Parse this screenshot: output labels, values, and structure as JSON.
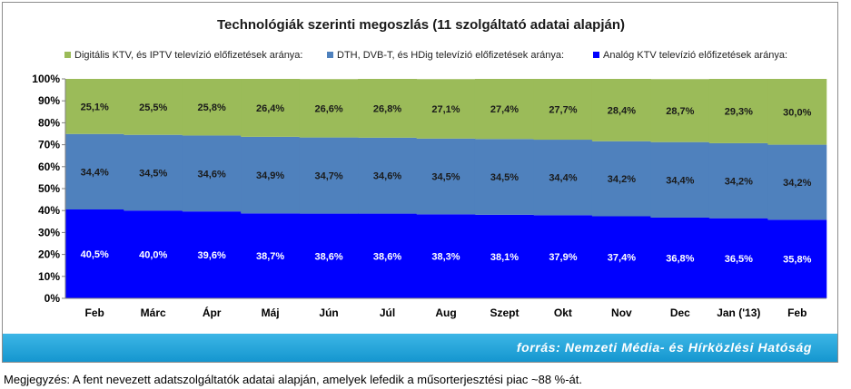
{
  "chart_data": {
    "type": "bar",
    "stacked": true,
    "title": "Technológiák szerinti megoszlás (11 szolgáltató adatai alapján)",
    "categories": [
      "Feb",
      "Márc",
      "Ápr",
      "Máj",
      "Jún",
      "Júl",
      "Aug",
      "Szept",
      "Okt",
      "Nov",
      "Dec",
      "Jan ('13)",
      "Feb"
    ],
    "series": [
      {
        "name": "Analóg KTV televízió előfizetések aránya:",
        "color": "#0000ff",
        "values": [
          40.5,
          40.0,
          39.6,
          38.7,
          38.6,
          38.6,
          38.3,
          38.1,
          37.9,
          37.4,
          36.8,
          36.5,
          35.8
        ],
        "labels": [
          "40,5%",
          "40,0%",
          "39,6%",
          "38,7%",
          "38,6%",
          "38,6%",
          "38,3%",
          "38,1%",
          "37,9%",
          "37,4%",
          "36,8%",
          "36,5%",
          "35,8%"
        ]
      },
      {
        "name": "DTH, DVB-T, és HDig televízió előfizetések aránya:",
        "color": "#4f81bd",
        "values": [
          34.4,
          34.5,
          34.6,
          34.9,
          34.7,
          34.6,
          34.5,
          34.5,
          34.4,
          34.2,
          34.4,
          34.2,
          34.2
        ],
        "labels": [
          "34,4%",
          "34,5%",
          "34,6%",
          "34,9%",
          "34,7%",
          "34,6%",
          "34,5%",
          "34,5%",
          "34,4%",
          "34,2%",
          "34,4%",
          "34,2%",
          "34,2%"
        ]
      },
      {
        "name": "Digitális KTV, és IPTV televízió előfizetések aránya:",
        "color": "#9bbb59",
        "values": [
          25.1,
          25.5,
          25.8,
          26.4,
          26.6,
          26.8,
          27.1,
          27.4,
          27.7,
          28.4,
          28.7,
          29.3,
          30.0
        ],
        "labels": [
          "25,1%",
          "25,5%",
          "25,8%",
          "26,4%",
          "26,6%",
          "26,8%",
          "27,1%",
          "27,4%",
          "27,7%",
          "28,4%",
          "28,7%",
          "29,3%",
          "30,0%"
        ]
      }
    ],
    "legend_order": [
      2,
      1,
      0
    ],
    "ylim": [
      0,
      100
    ],
    "yticks": [
      "0%",
      "10%",
      "20%",
      "30%",
      "40%",
      "50%",
      "60%",
      "70%",
      "80%",
      "90%",
      "100%"
    ],
    "grid": false,
    "legend": "top"
  },
  "source": "forrás: Nemzeti Média- és Hírközlési Hatóság",
  "note": "Megjegyzés: A fent nevezett adatszolgáltatók adatai alapján, amelyek lefedik a műsorterjesztési piac ~88 %-át.",
  "colors": {
    "plot_bg": "#ffffff",
    "source_bar": "#1596cf"
  }
}
